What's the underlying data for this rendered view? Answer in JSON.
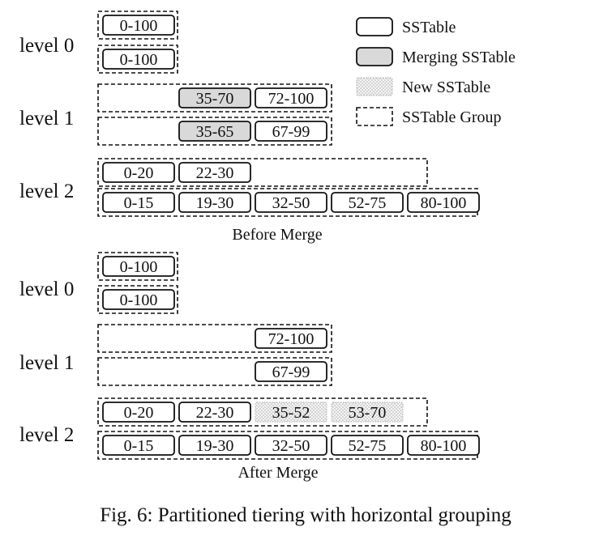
{
  "legend": {
    "sstable": "SSTable",
    "merging": "Merging SSTable",
    "new": "New SSTable",
    "group": "SSTable Group"
  },
  "colors": {
    "merging_fill": "#d9d9d9",
    "new_fill_dots": "#b0b0b0",
    "stroke": "#111111"
  },
  "panels": [
    {
      "label": "Before Merge",
      "levels": [
        {
          "label": "level 0",
          "groups": [
            {
              "tables": [
                {
                  "range": "0-100",
                  "state": "normal"
                }
              ]
            },
            {
              "tables": [
                {
                  "range": "0-100",
                  "state": "normal"
                }
              ]
            }
          ]
        },
        {
          "label": "level 1",
          "groups": [
            {
              "tables": [
                {
                  "range": "35-70",
                  "state": "merging"
                },
                {
                  "range": "72-100",
                  "state": "normal"
                }
              ]
            },
            {
              "tables": [
                {
                  "range": "35-65",
                  "state": "merging"
                },
                {
                  "range": "67-99",
                  "state": "normal"
                }
              ]
            }
          ]
        },
        {
          "label": "level 2",
          "groups": [
            {
              "tables": [
                {
                  "range": "0-20",
                  "state": "normal"
                },
                {
                  "range": "22-30",
                  "state": "normal"
                }
              ]
            },
            {
              "tables": [
                {
                  "range": "0-15",
                  "state": "normal"
                },
                {
                  "range": "19-30",
                  "state": "normal"
                },
                {
                  "range": "32-50",
                  "state": "normal"
                },
                {
                  "range": "52-75",
                  "state": "normal"
                },
                {
                  "range": "80-100",
                  "state": "normal"
                }
              ]
            }
          ]
        }
      ]
    },
    {
      "label": "After Merge",
      "levels": [
        {
          "label": "level 0",
          "groups": [
            {
              "tables": [
                {
                  "range": "0-100",
                  "state": "normal"
                }
              ]
            },
            {
              "tables": [
                {
                  "range": "0-100",
                  "state": "normal"
                }
              ]
            }
          ]
        },
        {
          "label": "level 1",
          "groups": [
            {
              "tables": [
                {
                  "range": "72-100",
                  "state": "normal"
                }
              ]
            },
            {
              "tables": [
                {
                  "range": "67-99",
                  "state": "normal"
                }
              ]
            }
          ]
        },
        {
          "label": "level 2",
          "groups": [
            {
              "tables": [
                {
                  "range": "0-20",
                  "state": "normal"
                },
                {
                  "range": "22-30",
                  "state": "normal"
                },
                {
                  "range": "35-52",
                  "state": "new"
                },
                {
                  "range": "53-70",
                  "state": "new"
                }
              ]
            },
            {
              "tables": [
                {
                  "range": "0-15",
                  "state": "normal"
                },
                {
                  "range": "19-30",
                  "state": "normal"
                },
                {
                  "range": "32-50",
                  "state": "normal"
                },
                {
                  "range": "52-75",
                  "state": "normal"
                },
                {
                  "range": "80-100",
                  "state": "normal"
                }
              ]
            }
          ]
        }
      ]
    }
  ],
  "caption": "Fig. 6: Partitioned tiering with horizontal grouping"
}
